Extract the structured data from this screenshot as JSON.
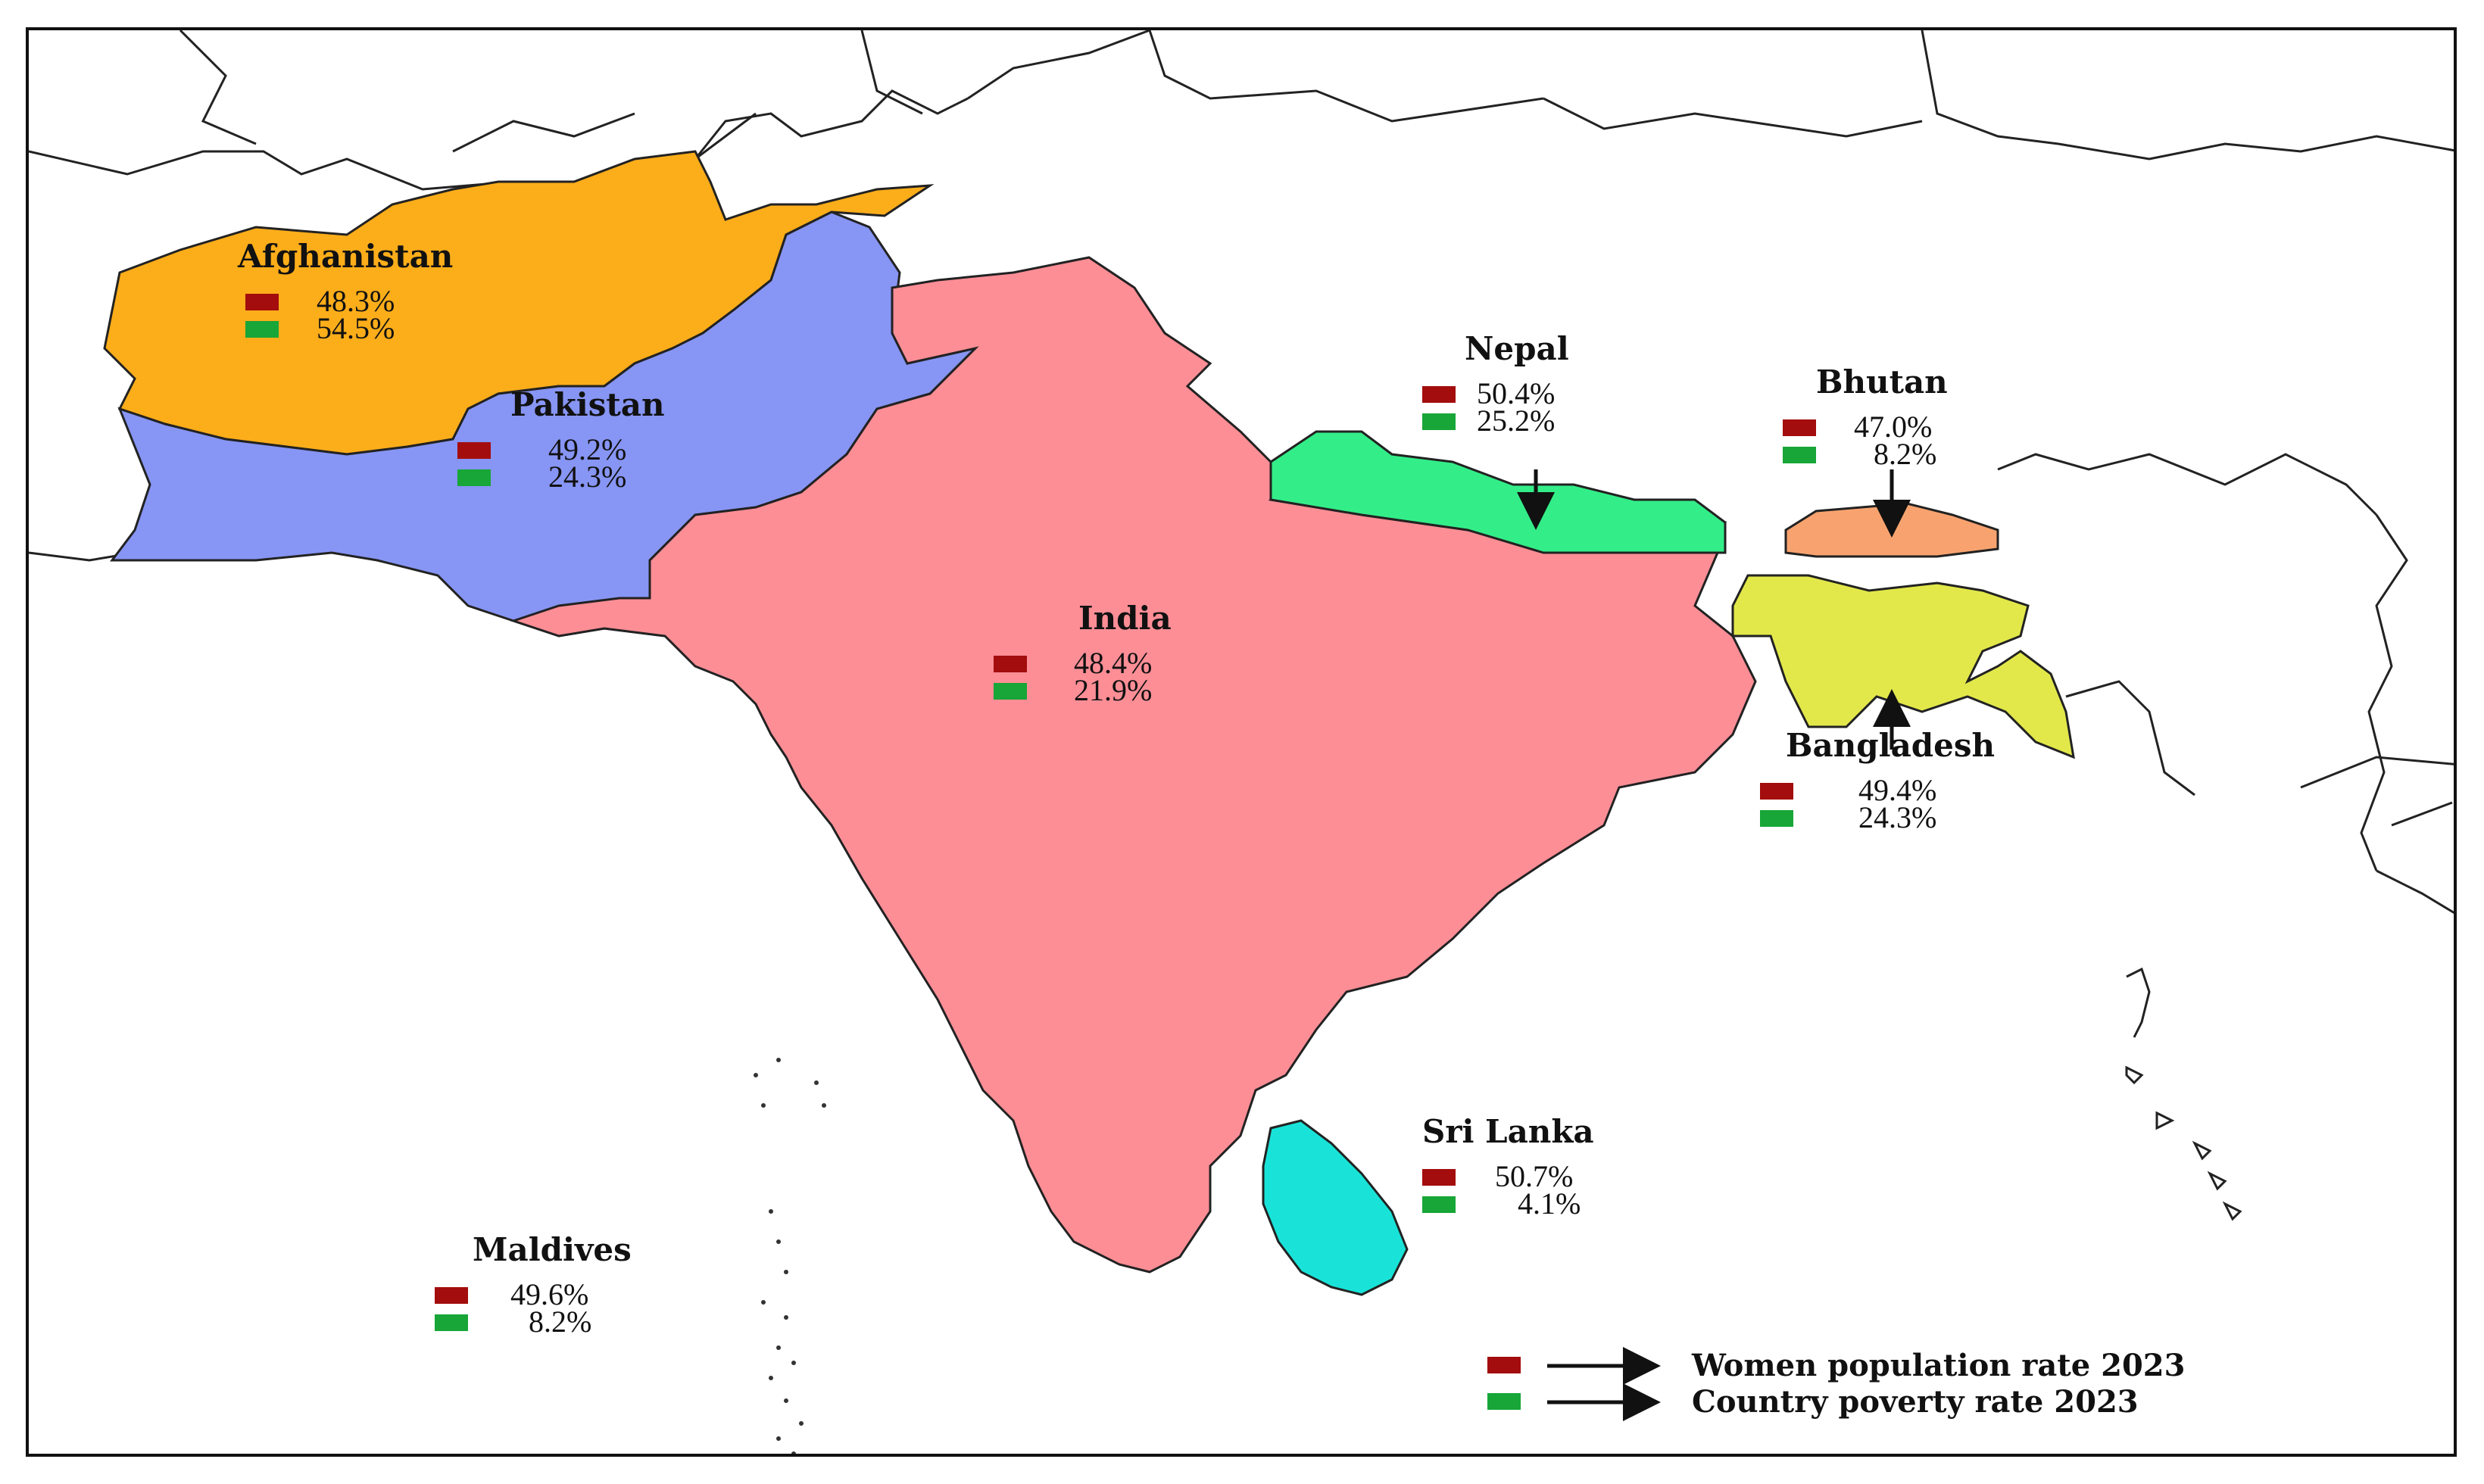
{
  "legend": {
    "women_population": {
      "label": "Women population rate 2023",
      "color": "#a30d0d"
    },
    "poverty": {
      "label": "Country poverty rate 2023",
      "color": "#17a637"
    }
  },
  "countries": {
    "afghanistan": {
      "name": "Afghanistan",
      "women": "48.3%",
      "poverty": "54.5%",
      "color": "#fcad1a"
    },
    "pakistan": {
      "name": "Pakistan",
      "women": "49.2%",
      "poverty": "24.3%",
      "color": "#8795f4"
    },
    "india": {
      "name": "India",
      "women": "48.4%",
      "poverty": "21.9%",
      "color": "#fd8e96"
    },
    "nepal": {
      "name": "Nepal",
      "women": "50.4%",
      "poverty": "25.2%",
      "color": "#33ee88"
    },
    "bhutan": {
      "name": "Bhutan",
      "women": "47.0%",
      "poverty": "8.2%",
      "color": "#f8a36f"
    },
    "bangladesh": {
      "name": "Bangladesh",
      "women": "49.4%",
      "poverty": "24.3%",
      "color": "#e2e84a"
    },
    "sri_lanka": {
      "name": "Sri Lanka",
      "women": "50.7%",
      "poverty": "4.1%",
      "color": "#19e3d8"
    },
    "maldives": {
      "name": "Maldives",
      "women": "49.6%",
      "poverty": "8.2%",
      "color": "#ffffff"
    }
  }
}
